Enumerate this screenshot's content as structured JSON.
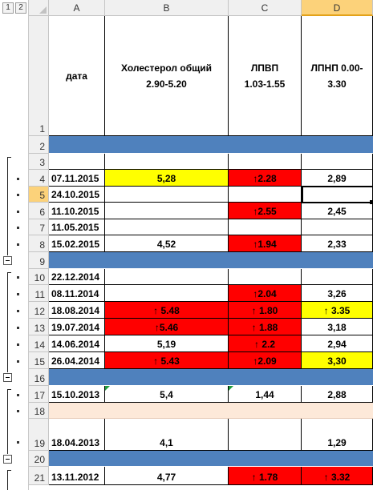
{
  "outline": {
    "levels": [
      "1",
      "2"
    ]
  },
  "columns": [
    {
      "id": "A",
      "label": "A",
      "selected": false
    },
    {
      "id": "B",
      "label": "B",
      "selected": false
    },
    {
      "id": "C",
      "label": "C",
      "selected": false
    },
    {
      "id": "D",
      "label": "D",
      "selected": true
    }
  ],
  "header_row": {
    "row_number": "1",
    "cells": [
      "дата",
      "Холестерол общий\n2.90-5.20",
      "ЛПВП\n1.03-1.55",
      "ЛПНП  0.00-\n3.30"
    ]
  },
  "rows": [
    {
      "num": "2",
      "fill": "blue",
      "cells": [
        "",
        "",
        "",
        ""
      ]
    },
    {
      "num": "3",
      "cells": [
        "",
        "",
        "",
        ""
      ]
    },
    {
      "num": "4",
      "cells": [
        "07.11.2015",
        "5,28",
        "↑2.28",
        "2,89"
      ],
      "bg": [
        "",
        "yellow",
        "red",
        ""
      ]
    },
    {
      "num": "5",
      "selected": true,
      "cells": [
        "24.10.2015",
        "",
        "",
        ""
      ]
    },
    {
      "num": "6",
      "cells": [
        "11.10.2015",
        "",
        "↑2.55",
        "2,45"
      ],
      "bg": [
        "",
        "",
        "red",
        ""
      ]
    },
    {
      "num": "7",
      "cells": [
        "11.05.2015",
        "",
        "",
        ""
      ]
    },
    {
      "num": "8",
      "cells": [
        "15.02.2015",
        "4,52",
        "↑1.94",
        "2,33"
      ],
      "bg": [
        "",
        "",
        "red",
        ""
      ]
    },
    {
      "num": "9",
      "fill": "blue",
      "cells": [
        "",
        "",
        "",
        ""
      ]
    },
    {
      "num": "10",
      "cells": [
        "22.12.2014",
        "",
        "",
        ""
      ]
    },
    {
      "num": "11",
      "cells": [
        "08.11.2014",
        "",
        "↑2.04",
        "3,26"
      ],
      "bg": [
        "",
        "",
        "red",
        ""
      ]
    },
    {
      "num": "12",
      "cells": [
        "18.08.2014",
        "↑ 5.48",
        "↑ 1.80",
        "↑ 3.35"
      ],
      "bg": [
        "",
        "red",
        "red",
        "yellow"
      ]
    },
    {
      "num": "13",
      "cells": [
        "19.07.2014",
        "↑5.46",
        "↑ 1.88",
        "3,18"
      ],
      "bg": [
        "",
        "red",
        "red",
        ""
      ]
    },
    {
      "num": "14",
      "cells": [
        "14.06.2014",
        "5,19",
        "↑ 2.2",
        "2,94"
      ],
      "bg": [
        "",
        "",
        "red",
        ""
      ]
    },
    {
      "num": "15",
      "cells": [
        "26.04.2014",
        "↑ 5.43",
        "↑2.09",
        "3,30"
      ],
      "bg": [
        "",
        "red",
        "red",
        "yellow"
      ]
    },
    {
      "num": "16",
      "fill": "blue",
      "cells": [
        "",
        "",
        "",
        ""
      ]
    },
    {
      "num": "17",
      "cells": [
        "15.10.2013",
        "5,4",
        "1,44",
        "2,88"
      ],
      "bg": [
        "",
        "",
        "",
        ""
      ]
    },
    {
      "num": "18",
      "fill": "peach",
      "cells": [
        "",
        "",
        "",
        ""
      ]
    },
    {
      "num": "19",
      "cells": [
        "18.04.2013",
        "4,1",
        "",
        "1,29"
      ],
      "bg": [
        "",
        "",
        "",
        ""
      ]
    },
    {
      "num": "20",
      "fill": "blue",
      "cells": [
        "",
        "",
        "",
        ""
      ]
    },
    {
      "num": "21",
      "cells": [
        "13.11.2012",
        "4,77",
        "↑ 1.78",
        "↑ 3.32"
      ],
      "bg": [
        "",
        "",
        "red",
        "red"
      ]
    }
  ],
  "colors": {
    "red": "#ff0000",
    "yellow": "#ffff00",
    "blue": "#4f81bd",
    "peach": "#fde9d9",
    "selected_header": "#fcd27a"
  }
}
